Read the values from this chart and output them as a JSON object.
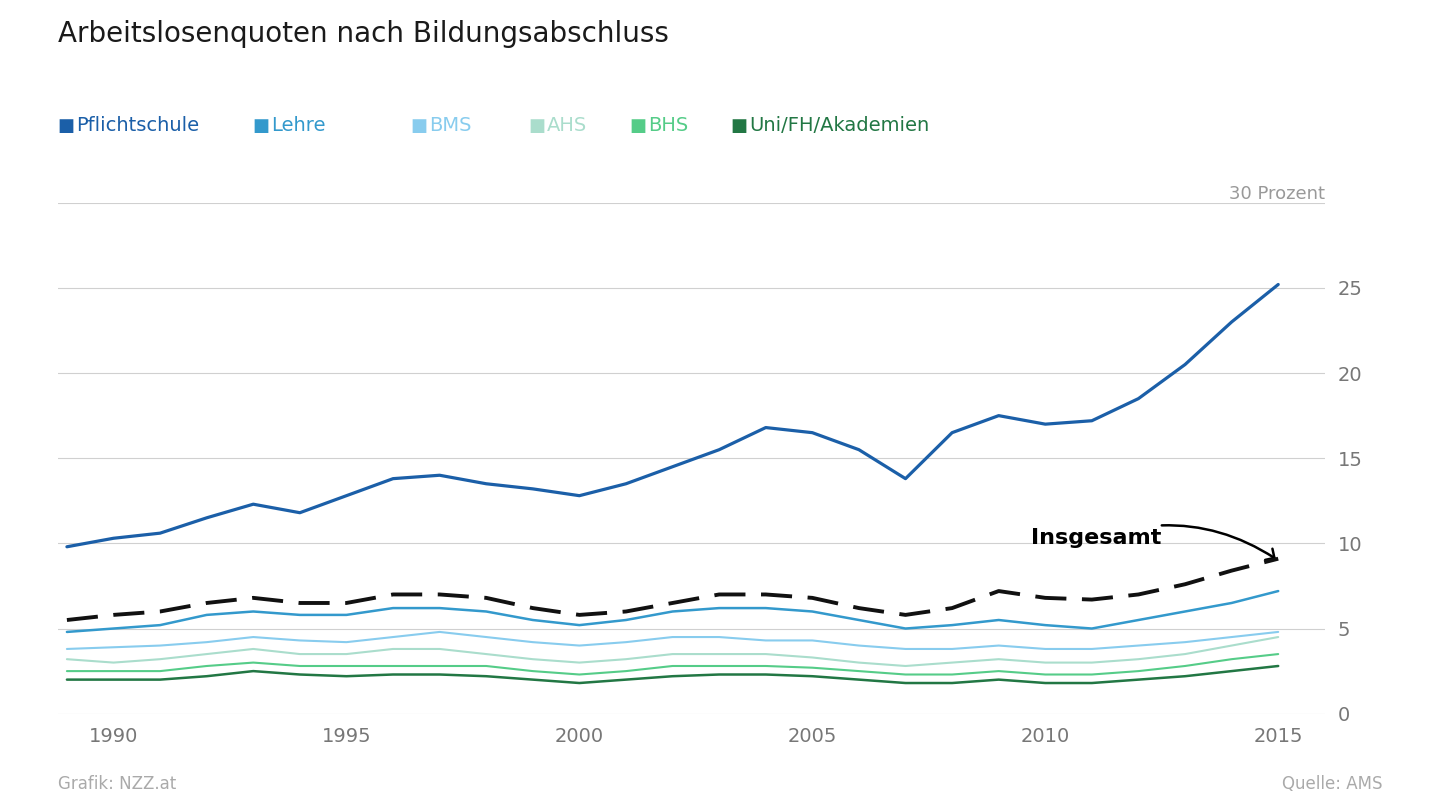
{
  "title": "Arbeitslosenquoten nach Bildungsabschluss",
  "footer_left": "Grafik: NZZ.at",
  "footer_right": "Quelle: AMS",
  "ylabel_top": "30 Prozent",
  "ylim": [
    0,
    30
  ],
  "yticks": [
    0,
    5,
    10,
    15,
    20,
    25
  ],
  "ytick_labels": [
    "0",
    "5",
    "10",
    "15",
    "20",
    "25"
  ],
  "xlim": [
    1988.8,
    2016.0
  ],
  "xticks": [
    1990,
    1995,
    2000,
    2005,
    2010,
    2015
  ],
  "background_color": "#ffffff",
  "grid_color": "#d0d0d0",
  "series_order": [
    "Pflichtschule",
    "Insgesamt",
    "Lehre",
    "BMS",
    "AHS",
    "BHS",
    "Uni/FH/Akademien"
  ],
  "series": {
    "Pflichtschule": {
      "color": "#1b5fa8",
      "linewidth": 2.3,
      "linestyle": "solid",
      "years": [
        1989,
        1990,
        1991,
        1992,
        1993,
        1994,
        1995,
        1996,
        1997,
        1998,
        1999,
        2000,
        2001,
        2002,
        2003,
        2004,
        2005,
        2006,
        2007,
        2008,
        2009,
        2010,
        2011,
        2012,
        2013,
        2014,
        2015
      ],
      "values": [
        9.8,
        10.3,
        10.6,
        11.5,
        12.3,
        11.8,
        12.8,
        13.8,
        14.0,
        13.5,
        13.2,
        12.8,
        13.5,
        14.5,
        15.5,
        16.8,
        16.5,
        15.5,
        13.8,
        16.5,
        17.5,
        17.0,
        17.2,
        18.5,
        20.5,
        23.0,
        25.2
      ]
    },
    "Lehre": {
      "color": "#3399cc",
      "linewidth": 1.8,
      "linestyle": "solid",
      "years": [
        1989,
        1990,
        1991,
        1992,
        1993,
        1994,
        1995,
        1996,
        1997,
        1998,
        1999,
        2000,
        2001,
        2002,
        2003,
        2004,
        2005,
        2006,
        2007,
        2008,
        2009,
        2010,
        2011,
        2012,
        2013,
        2014,
        2015
      ],
      "values": [
        4.8,
        5.0,
        5.2,
        5.8,
        6.0,
        5.8,
        5.8,
        6.2,
        6.2,
        6.0,
        5.5,
        5.2,
        5.5,
        6.0,
        6.2,
        6.2,
        6.0,
        5.5,
        5.0,
        5.2,
        5.5,
        5.2,
        5.0,
        5.5,
        6.0,
        6.5,
        7.2
      ]
    },
    "BMS": {
      "color": "#88ccee",
      "linewidth": 1.5,
      "linestyle": "solid",
      "years": [
        1989,
        1990,
        1991,
        1992,
        1993,
        1994,
        1995,
        1996,
        1997,
        1998,
        1999,
        2000,
        2001,
        2002,
        2003,
        2004,
        2005,
        2006,
        2007,
        2008,
        2009,
        2010,
        2011,
        2012,
        2013,
        2014,
        2015
      ],
      "values": [
        3.8,
        3.9,
        4.0,
        4.2,
        4.5,
        4.3,
        4.2,
        4.5,
        4.8,
        4.5,
        4.2,
        4.0,
        4.2,
        4.5,
        4.5,
        4.3,
        4.3,
        4.0,
        3.8,
        3.8,
        4.0,
        3.8,
        3.8,
        4.0,
        4.2,
        4.5,
        4.8
      ]
    },
    "AHS": {
      "color": "#aaddcc",
      "linewidth": 1.5,
      "linestyle": "solid",
      "years": [
        1989,
        1990,
        1991,
        1992,
        1993,
        1994,
        1995,
        1996,
        1997,
        1998,
        1999,
        2000,
        2001,
        2002,
        2003,
        2004,
        2005,
        2006,
        2007,
        2008,
        2009,
        2010,
        2011,
        2012,
        2013,
        2014,
        2015
      ],
      "values": [
        3.2,
        3.0,
        3.2,
        3.5,
        3.8,
        3.5,
        3.5,
        3.8,
        3.8,
        3.5,
        3.2,
        3.0,
        3.2,
        3.5,
        3.5,
        3.5,
        3.3,
        3.0,
        2.8,
        3.0,
        3.2,
        3.0,
        3.0,
        3.2,
        3.5,
        4.0,
        4.5
      ]
    },
    "BHS": {
      "color": "#55cc88",
      "linewidth": 1.5,
      "linestyle": "solid",
      "years": [
        1989,
        1990,
        1991,
        1992,
        1993,
        1994,
        1995,
        1996,
        1997,
        1998,
        1999,
        2000,
        2001,
        2002,
        2003,
        2004,
        2005,
        2006,
        2007,
        2008,
        2009,
        2010,
        2011,
        2012,
        2013,
        2014,
        2015
      ],
      "values": [
        2.5,
        2.5,
        2.5,
        2.8,
        3.0,
        2.8,
        2.8,
        2.8,
        2.8,
        2.8,
        2.5,
        2.3,
        2.5,
        2.8,
        2.8,
        2.8,
        2.7,
        2.5,
        2.3,
        2.3,
        2.5,
        2.3,
        2.3,
        2.5,
        2.8,
        3.2,
        3.5
      ]
    },
    "Uni/FH/Akademien": {
      "color": "#227744",
      "linewidth": 1.8,
      "linestyle": "solid",
      "years": [
        1989,
        1990,
        1991,
        1992,
        1993,
        1994,
        1995,
        1996,
        1997,
        1998,
        1999,
        2000,
        2001,
        2002,
        2003,
        2004,
        2005,
        2006,
        2007,
        2008,
        2009,
        2010,
        2011,
        2012,
        2013,
        2014,
        2015
      ],
      "values": [
        2.0,
        2.0,
        2.0,
        2.2,
        2.5,
        2.3,
        2.2,
        2.3,
        2.3,
        2.2,
        2.0,
        1.8,
        2.0,
        2.2,
        2.3,
        2.3,
        2.2,
        2.0,
        1.8,
        1.8,
        2.0,
        1.8,
        1.8,
        2.0,
        2.2,
        2.5,
        2.8
      ]
    },
    "Insgesamt": {
      "color": "#111111",
      "linewidth": 2.8,
      "linestyle": "dashed",
      "years": [
        1989,
        1990,
        1991,
        1992,
        1993,
        1994,
        1995,
        1996,
        1997,
        1998,
        1999,
        2000,
        2001,
        2002,
        2003,
        2004,
        2005,
        2006,
        2007,
        2008,
        2009,
        2010,
        2011,
        2012,
        2013,
        2014,
        2015
      ],
      "values": [
        5.5,
        5.8,
        6.0,
        6.5,
        6.8,
        6.5,
        6.5,
        7.0,
        7.0,
        6.8,
        6.2,
        5.8,
        6.0,
        6.5,
        7.0,
        7.0,
        6.8,
        6.2,
        5.8,
        6.2,
        7.2,
        6.8,
        6.7,
        7.0,
        7.6,
        8.4,
        9.1
      ]
    }
  },
  "legend": [
    {
      "label": "Pflichtschule",
      "color": "#1b5fa8"
    },
    {
      "label": "Lehre",
      "color": "#3399cc"
    },
    {
      "label": "BMS",
      "color": "#88ccee"
    },
    {
      "label": "AHS",
      "color": "#aaddcc"
    },
    {
      "label": "BHS",
      "color": "#55cc88"
    },
    {
      "label": "Uni/FH/Akademien",
      "color": "#227744"
    }
  ]
}
